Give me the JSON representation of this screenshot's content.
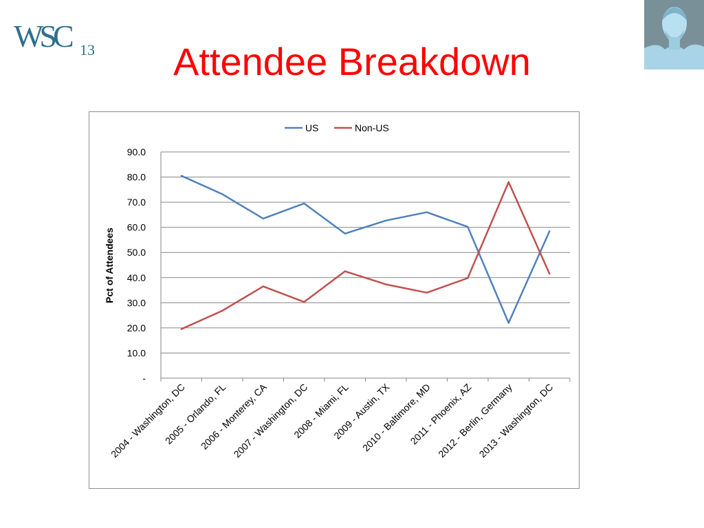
{
  "slide": {
    "title": "Attendee Breakdown",
    "logo_text": "WSC",
    "logo_sub": "13"
  },
  "colors": {
    "title": "#ff0000",
    "us": "#4f81bd",
    "non_us": "#c0504d",
    "logo": "#2f6f8f"
  },
  "icons": {
    "logo": "wsc13-logo-icon",
    "portrait": "lincoln-memorial-portrait-icon"
  },
  "chart_data": {
    "type": "line",
    "title": "",
    "xlabel": "",
    "ylabel": "Pct of Attendees",
    "categories": [
      "2004 - Washington, DC",
      "2005 - Orlando, FL",
      "2006 - Monterey, CA",
      "2007 - Washington, DC",
      "2008 - Miami, FL",
      "2009 - Austin, TX",
      "2010 - Baltimore, MD",
      "2011 - Phoenix, AZ",
      "2012 - Berlin, Germany",
      "2013 - Washington, DC"
    ],
    "y_ticks": [
      "-",
      "10.0",
      "20.0",
      "30.0",
      "40.0",
      "50.0",
      "60.0",
      "70.0",
      "80.0",
      "90.0"
    ],
    "ylim": [
      0,
      90
    ],
    "grid": true,
    "legend_position": "top",
    "series": [
      {
        "name": "US",
        "color": "#4f81bd",
        "values": [
          80.5,
          73.2,
          63.5,
          69.5,
          57.5,
          62.7,
          66.0,
          60.2,
          22.0,
          58.5
        ]
      },
      {
        "name": "Non-US",
        "color": "#c0504d",
        "values": [
          19.5,
          26.8,
          36.5,
          30.3,
          42.5,
          37.3,
          34.0,
          39.8,
          78.0,
          41.5
        ]
      }
    ]
  }
}
